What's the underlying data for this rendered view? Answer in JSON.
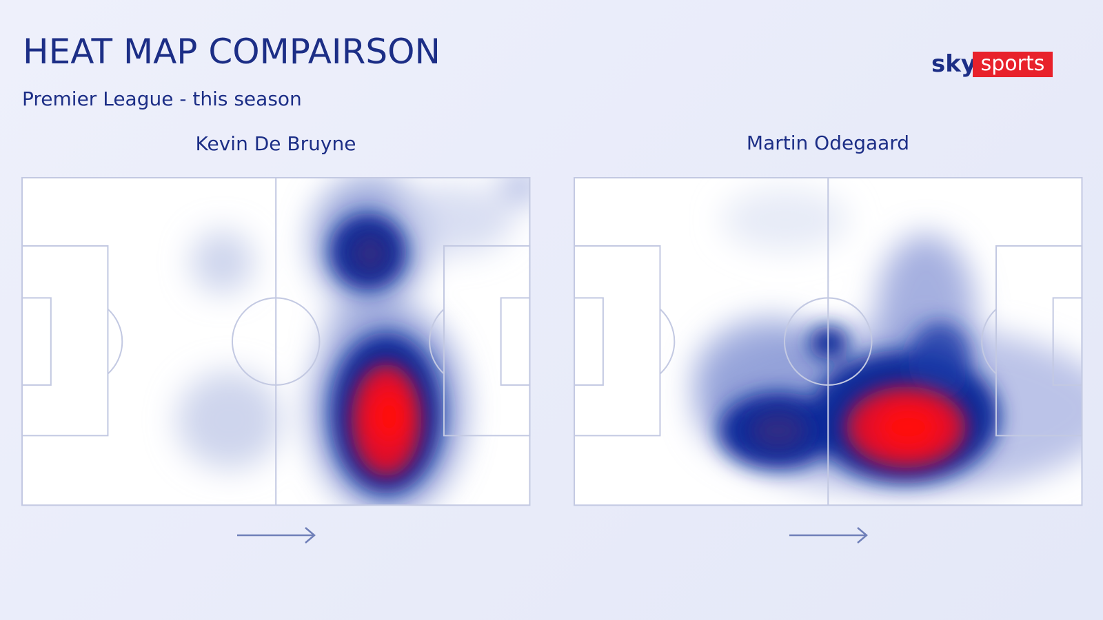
{
  "header": {
    "title": "HEAT MAP COMPAIRSON",
    "subtitle": "Premier League - this season"
  },
  "logo": {
    "sky": "sky",
    "sports": "sports"
  },
  "panels": [
    {
      "player": "Kevin De Bruyne"
    },
    {
      "player": "Martin Odegaard"
    }
  ]
}
